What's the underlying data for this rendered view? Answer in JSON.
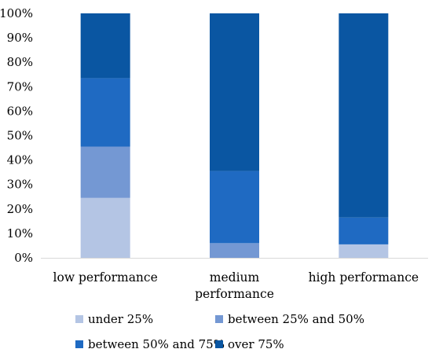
{
  "chart_data": {
    "type": "bar",
    "stacked": true,
    "categories": [
      [
        "low performance"
      ],
      [
        "medium",
        "performance"
      ],
      [
        "high performance"
      ]
    ],
    "series": [
      {
        "name": "under 25%",
        "color": "#b4c5e4",
        "values": [
          24.5,
          0,
          5.5
        ]
      },
      {
        "name": "between 25% and 50%",
        "color": "#7498d3",
        "values": [
          21,
          6,
          0
        ]
      },
      {
        "name": "between 50% and 75%",
        "color": "#1f6ac2",
        "values": [
          28,
          29.5,
          11
        ]
      },
      {
        "name": "over 75%",
        "color": "#0a56a2",
        "values": [
          26.5,
          64.5,
          83.5
        ]
      }
    ],
    "ylim": [
      0,
      100
    ],
    "yticks": [
      "0%",
      "10%",
      "20%",
      "30%",
      "40%",
      "50%",
      "60%",
      "70%",
      "80%",
      "90%",
      "100%"
    ],
    "grid": false,
    "legend_position": "bottom"
  }
}
